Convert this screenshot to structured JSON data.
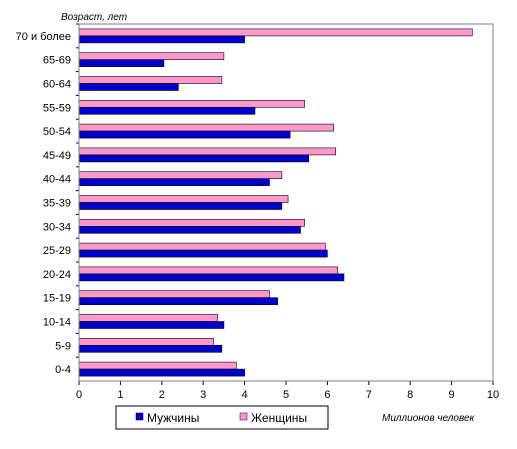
{
  "chart_data": {
    "type": "bar",
    "orientation": "horizontal",
    "title": "",
    "ylabel": "Возраст, лет",
    "xlabel": "Миллионов человек",
    "categories": [
      "70 и более",
      "65-69",
      "60-64",
      "55-59",
      "50-54",
      "45-49",
      "40-44",
      "35-39",
      "30-34",
      "25-29",
      "20-24",
      "15-19",
      "10-14",
      "5-9",
      "0-4"
    ],
    "series": [
      {
        "name": "Женщины",
        "color": "#ff99cc",
        "values": [
          9.5,
          3.5,
          3.45,
          5.45,
          6.15,
          6.2,
          4.9,
          5.05,
          5.45,
          5.95,
          6.25,
          4.6,
          3.35,
          3.25,
          3.8
        ]
      },
      {
        "name": "Мужчины",
        "color": "#0000cc",
        "values": [
          4.0,
          2.05,
          2.4,
          4.25,
          5.1,
          5.55,
          4.6,
          4.9,
          5.35,
          6.0,
          6.4,
          4.8,
          3.5,
          3.45,
          4.0
        ]
      }
    ],
    "xlim": [
      0,
      10
    ],
    "xticks": [
      "0",
      "1",
      "2",
      "3",
      "4",
      "5",
      "6",
      "7",
      "8",
      "9",
      "10"
    ],
    "grid": false,
    "legend": {
      "position": "bottom",
      "items": [
        "Мужчины",
        "Женщины"
      ]
    }
  }
}
